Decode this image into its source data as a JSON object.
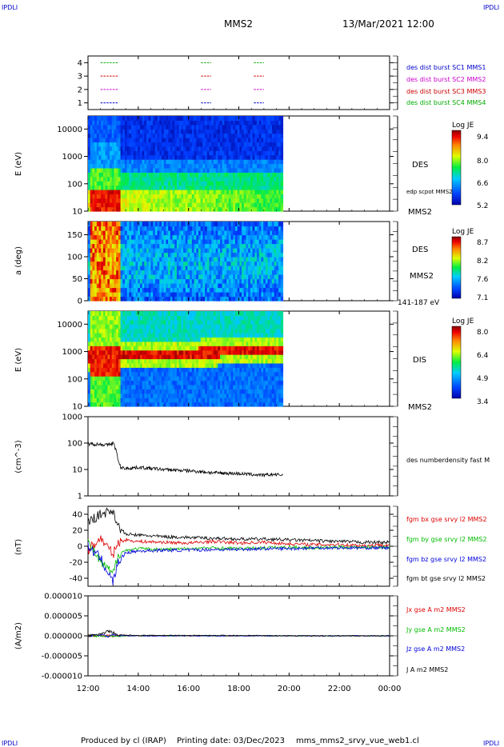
{
  "header": {
    "corner_label": "IPDLI",
    "spacecraft": "MMS2",
    "datetime": "13/Mar/2021 12:00"
  },
  "footer": {
    "produced_by": "Produced by cl (IRAP)",
    "printing_date": "Printing date: 03/Dec/2023",
    "filename": "mms_mms2_srvy_vue_web1.cl"
  },
  "time_axis": {
    "ticks": [
      "12:00",
      "14:00",
      "16:00",
      "18:00",
      "20:00",
      "22:00",
      "00:00"
    ],
    "range_hours": [
      0,
      12
    ],
    "data_end_hours": 7.75
  },
  "colors": {
    "mms1": "#0000cc",
    "mms2": "#cc00cc",
    "mms3": "#cc0000",
    "mms4": "#00aa00",
    "bx": "#dd0000",
    "by": "#00bb00",
    "bz": "#0000dd",
    "bt": "#000000"
  },
  "chart_data": [
    {
      "type": "scatter",
      "panel": "burst",
      "yticks": [
        "1",
        "2",
        "3",
        "4"
      ],
      "ylim": [
        0.5,
        4.5
      ],
      "series": [
        {
          "name": "des dist burst SC1 MMS1",
          "y": 1,
          "intervals": [
            [
              0.5,
              1.2
            ],
            [
              4.5,
              4.9
            ],
            [
              6.6,
              7.0
            ]
          ]
        },
        {
          "name": "des dist burst SC2 MMS2",
          "y": 2,
          "intervals": [
            [
              0.5,
              1.2
            ],
            [
              4.5,
              4.9
            ],
            [
              6.6,
              7.0
            ]
          ]
        },
        {
          "name": "des dist burst SC3 MMS3",
          "y": 3,
          "intervals": [
            [
              0.5,
              1.2
            ],
            [
              4.5,
              4.9
            ],
            [
              6.6,
              7.0
            ]
          ]
        },
        {
          "name": "des dist burst SC4 MMS4",
          "y": 4,
          "intervals": [
            [
              0.5,
              1.2
            ],
            [
              4.5,
              4.9
            ],
            [
              6.6,
              7.0
            ]
          ]
        }
      ]
    },
    {
      "type": "heatmap",
      "panel": "des-energy",
      "ylabel": "E (eV)",
      "yscale": "log",
      "ylim": [
        10,
        30000
      ],
      "yticks": [
        "10",
        "100",
        "1000",
        "10000"
      ],
      "label": "DES",
      "overlay_label": "edp scpot MMS2",
      "sc_label": "MMS2",
      "colorbar": {
        "title": "Log JE",
        "ticks": [
          "9.4",
          "8.0",
          "6.6",
          "5.2"
        ],
        "range": [
          5.2,
          9.4
        ]
      }
    },
    {
      "type": "heatmap",
      "panel": "des-pitch",
      "ylabel": "a (deg)",
      "ylim": [
        0,
        180
      ],
      "yticks": [
        "0",
        "50",
        "100",
        "150"
      ],
      "label": "DES",
      "sc_label": "MMS2",
      "energy_label": "141-187 eV",
      "colorbar": {
        "title": "Log JE",
        "ticks": [
          "8.7",
          "8.2",
          "7.6",
          "7.1"
        ],
        "range": [
          7.1,
          8.7
        ]
      }
    },
    {
      "type": "heatmap",
      "panel": "dis-energy",
      "ylabel": "E (eV)",
      "yscale": "log",
      "ylim": [
        10,
        30000
      ],
      "yticks": [
        "10",
        "100",
        "1000",
        "10000"
      ],
      "label": "DIS",
      "sc_label": "MMS2",
      "colorbar": {
        "title": "Log JE",
        "ticks": [
          "8.0",
          "6.4",
          "4.9",
          "3.4"
        ],
        "range": [
          3.4,
          8.0
        ]
      }
    },
    {
      "type": "line",
      "panel": "density",
      "ylabel": "(cm^-3)",
      "yscale": "log",
      "ylim": [
        1,
        1000
      ],
      "yticks": [
        "1",
        "10",
        "100",
        "1000"
      ],
      "series": [
        {
          "name": "des numberdensity fast M",
          "x": [
            0,
            0.5,
            0.8,
            1.0,
            1.1,
            1.2,
            1.3,
            1.5,
            2.0,
            3.0,
            4.0,
            5.0,
            6.0,
            6.5,
            7.0,
            7.3,
            7.75
          ],
          "y": [
            95,
            90,
            85,
            100,
            60,
            20,
            12,
            11,
            12,
            10,
            9,
            7.5,
            7.0,
            6.5,
            6.0,
            6.5,
            6.2
          ]
        }
      ]
    },
    {
      "type": "line",
      "panel": "magnetic-field",
      "ylabel": "(nT)",
      "ylim": [
        -50,
        50
      ],
      "yticks": [
        "-40",
        "-20",
        "0",
        "20",
        "40"
      ],
      "series": [
        {
          "name": "fgm bx gse srvy l2 MMS2",
          "x": [
            0,
            0.5,
            1.0,
            1.2,
            1.5,
            2.0,
            3.0,
            4.0,
            5.0,
            6.0,
            7.0,
            8.0,
            9.0,
            10.0,
            11.0,
            12.0
          ],
          "y": [
            -5,
            10,
            -10,
            5,
            8,
            6,
            5,
            4,
            6,
            4,
            5,
            3,
            2,
            2,
            1,
            2
          ]
        },
        {
          "name": "fgm by gse srvy l2 MMS2",
          "x": [
            0,
            0.5,
            1.0,
            1.2,
            1.5,
            2.0,
            3.0,
            4.0,
            5.0,
            6.0,
            7.0,
            8.0,
            9.0,
            10.0,
            11.0,
            12.0
          ],
          "y": [
            5,
            -20,
            -35,
            -10,
            -5,
            -3,
            -4,
            -3,
            -2,
            -3,
            -2,
            -1,
            -2,
            -1,
            -1,
            -1
          ]
        },
        {
          "name": "fgm bz gse srvy l2 MMS2",
          "x": [
            0,
            0.5,
            1.0,
            1.2,
            1.5,
            2.0,
            3.0,
            4.0,
            5.0,
            6.0,
            7.0,
            8.0,
            9.0,
            10.0,
            11.0,
            12.0
          ],
          "y": [
            0,
            -15,
            -45,
            -20,
            -8,
            -6,
            -5,
            -5,
            -4,
            -4,
            -3,
            -3,
            -2,
            -2,
            -2,
            -2
          ]
        },
        {
          "name": "fgm bt gse srvy l2 MMS2",
          "x": [
            0,
            0.5,
            1.0,
            1.2,
            1.5,
            2.0,
            3.0,
            4.0,
            5.0,
            6.0,
            7.0,
            8.0,
            9.0,
            10.0,
            11.0,
            12.0
          ],
          "y": [
            30,
            40,
            45,
            25,
            15,
            14,
            12,
            11,
            10,
            9,
            9,
            8,
            7,
            6,
            5,
            5
          ]
        }
      ]
    },
    {
      "type": "line",
      "panel": "current-density",
      "ylabel": "(A/m2)",
      "ylim": [
        -1e-05,
        1e-05
      ],
      "yticks": [
        "-0.000010",
        "-0.000005",
        "0.000000",
        "0.000005",
        "0.000010"
      ],
      "series": [
        {
          "name": "Jx gse A m2 MMS2",
          "x": [
            0,
            0.6,
            0.8,
            1.0,
            1.2,
            2,
            4,
            6,
            8,
            10,
            12
          ],
          "y": [
            0,
            0,
            0,
            0,
            0,
            0,
            0,
            0,
            0,
            0,
            0
          ]
        },
        {
          "name": "Jy gse A m2 MMS2",
          "x": [
            0,
            0.6,
            0.8,
            1.0,
            1.2,
            2,
            4,
            6,
            8,
            10,
            12
          ],
          "y": [
            0,
            0,
            0,
            0,
            0,
            0,
            0,
            0,
            0,
            0,
            0
          ]
        },
        {
          "name": "Jz gse A m2 MMS2",
          "x": [
            0,
            0.6,
            0.8,
            1.0,
            1.2,
            2,
            4,
            6,
            8,
            10,
            12
          ],
          "y": [
            0,
            3e-07,
            -5e-07,
            4e-07,
            1e-07,
            0,
            0,
            0,
            0,
            0,
            0
          ]
        },
        {
          "name": "J A m2 MMS2",
          "x": [
            0,
            0.6,
            0.8,
            1.0,
            1.2,
            2,
            4,
            6,
            8,
            10,
            12
          ],
          "y": [
            0,
            5e-07,
            1.2e-06,
            8e-07,
            2e-07,
            1e-07,
            1e-07,
            1e-07,
            0,
            0,
            0
          ]
        }
      ]
    }
  ]
}
